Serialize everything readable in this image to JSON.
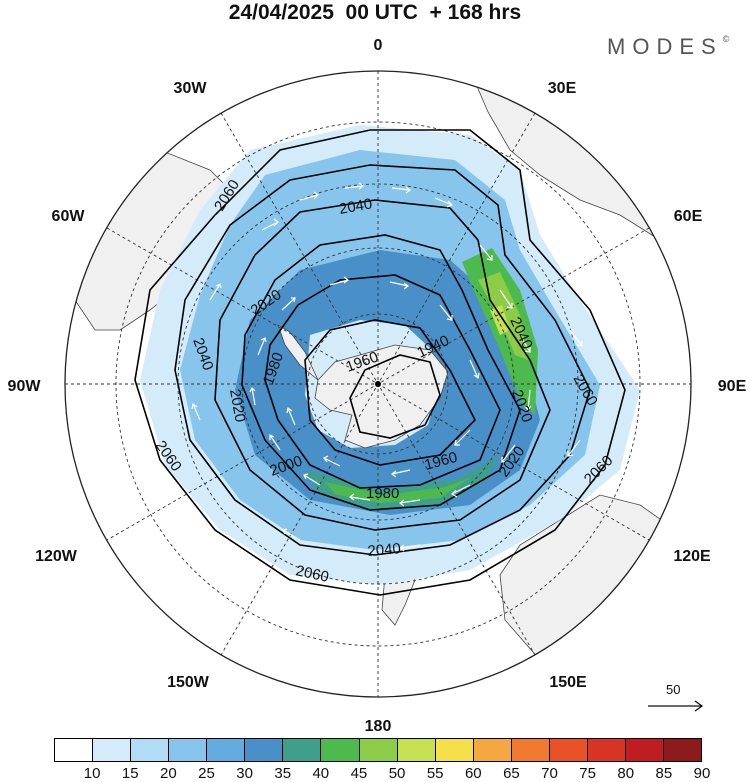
{
  "header": {
    "title": "24/04/2025  00 UTC  + 168 hrs",
    "brand": "MODES",
    "brand_mark": "©"
  },
  "map": {
    "projection": "south-polar-stereographic",
    "longitude_labels": {
      "lon_0": "0",
      "lon_30e": "30E",
      "lon_60e": "60E",
      "lon_90e": "90E",
      "lon_120e": "120E",
      "lon_150e": "150E",
      "lon_180": "180",
      "lon_150w": "150W",
      "lon_120w": "120W",
      "lon_90w": "90W",
      "lon_60w": "60W",
      "lon_30w": "30W"
    },
    "contour_labels": [
      "2060",
      "2060",
      "2060",
      "2060",
      "2060",
      "2040",
      "2040",
      "2040",
      "2040",
      "2020",
      "2020",
      "2020",
      "2020",
      "2000",
      "1980",
      "1980",
      "1960",
      "1960",
      "1940"
    ],
    "land_color": "#f0f0f0",
    "ocean_color": "#ffffff",
    "contour_color": "#000000",
    "wind_arrow_color": "#ffffff"
  },
  "reference_vector": {
    "label": "50"
  },
  "colorbar": {
    "ticks": [
      "10",
      "15",
      "20",
      "25",
      "30",
      "35",
      "40",
      "45",
      "50",
      "55",
      "60",
      "65",
      "70",
      "75",
      "80",
      "85",
      "90"
    ],
    "colors": [
      "#ffffff",
      "#d4ecfa",
      "#b0dcf5",
      "#88c5ec",
      "#64abe0",
      "#4a90c8",
      "#3ea08c",
      "#4cba4c",
      "#8ccc46",
      "#c6e052",
      "#f6e04a",
      "#f4a840",
      "#f07a30",
      "#e85226",
      "#d83424",
      "#c01c24",
      "#8c1a1a"
    ]
  }
}
